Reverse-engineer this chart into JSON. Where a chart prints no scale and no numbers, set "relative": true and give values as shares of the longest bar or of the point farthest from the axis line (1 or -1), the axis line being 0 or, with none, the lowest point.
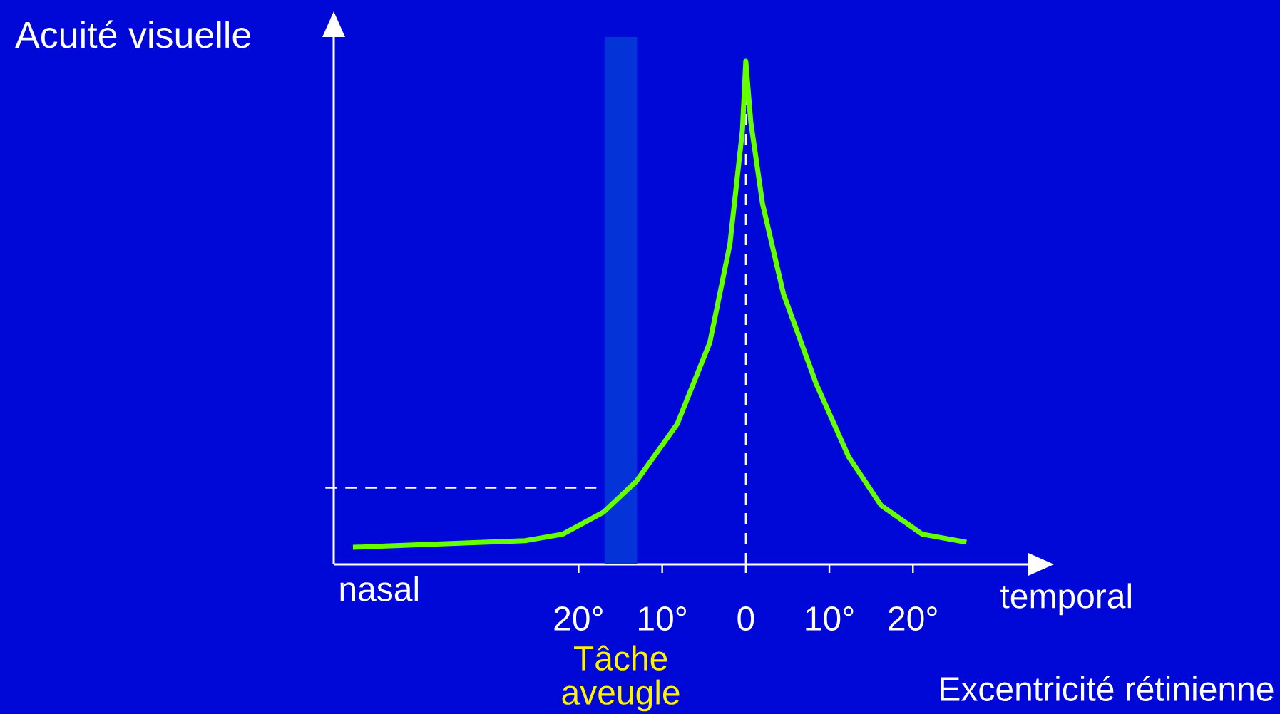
{
  "chart_data": {
    "type": "line",
    "relative": true,
    "ylabel": "Acuité visuelle",
    "annotations": [
      "nasal",
      "temporal",
      "Excentricité rétinienne"
    ],
    "x": [
      -47.0,
      -26.4,
      -21.9,
      -17.0,
      -13.1,
      -8.2,
      -4.3,
      -1.9,
      -0.4,
      0,
      0.6,
      2.0,
      4.5,
      8.4,
      12.3,
      16.2,
      21.1,
      26.4
    ],
    "series": [
      {
        "color": "#66ff00",
        "values": [
          0.034,
          0.047,
          0.06,
          0.104,
          0.165,
          0.279,
          0.441,
          0.636,
          0.863,
          1,
          0.879,
          0.717,
          0.538,
          0.36,
          0.214,
          0.117,
          0.06,
          0.044
        ]
      }
    ],
    "xlim": [
      -49.3,
      33.8
    ],
    "xticks": [
      {
        "value": -20,
        "label": "20°"
      },
      {
        "value": -10,
        "label": "10°"
      },
      0,
      {
        "value": 10,
        "label": "10°"
      },
      {
        "value": 20,
        "label": "20°"
      }
    ],
    "ref_lines": [
      {
        "axis": "x",
        "value": 0,
        "line_style": "dashed",
        "color": "#ffffff"
      },
      {
        "axis": "y",
        "value": 0.152,
        "line_style": "dashed",
        "color": "#ffffff"
      }
    ],
    "bands": [
      {
        "axis": "x",
        "from": -16.9,
        "to": -13.0,
        "label": "Tâche aveugle",
        "color": "#0433d8"
      }
    ],
    "marker": "none",
    "line_style": "solid"
  }
}
